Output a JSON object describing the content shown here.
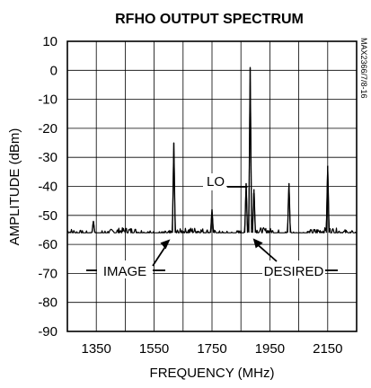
{
  "chart_data": {
    "type": "line",
    "title": "RFHO OUTPUT SPECTRUM",
    "xlabel": "FREQUENCY (MHz)",
    "ylabel": "AMPLITUDE (dBm)",
    "figure_id": "MAX2366/7/8-16",
    "xlim": [
      1250,
      2250
    ],
    "ylim": [
      -90,
      10
    ],
    "x_ticks": [
      1350,
      1550,
      1750,
      1950,
      2150
    ],
    "y_ticks": [
      10,
      0,
      -10,
      -20,
      -30,
      -40,
      -50,
      -60,
      -70,
      -80,
      -90
    ],
    "grid": true,
    "noise_floor": -56,
    "series": [
      {
        "values_description_free": true,
        "peaks": [
          {
            "x": 1340,
            "y": -52
          },
          {
            "x": 1618,
            "y": -25
          },
          {
            "x": 1750,
            "y": -48
          },
          {
            "x": 1868,
            "y": -39
          },
          {
            "x": 1882,
            "y": 1
          },
          {
            "x": 1895,
            "y": -41
          },
          {
            "x": 2016,
            "y": -39
          },
          {
            "x": 2150,
            "y": -33
          }
        ]
      }
    ],
    "annotations": [
      {
        "text": "LO",
        "target": {
          "x": 1882,
          "y": 1
        }
      },
      {
        "text": "IMAGE",
        "target": {
          "x": 1618,
          "y": -57
        }
      },
      {
        "text": "DESIRED",
        "target": {
          "x": 1895,
          "y": -57
        }
      }
    ]
  }
}
